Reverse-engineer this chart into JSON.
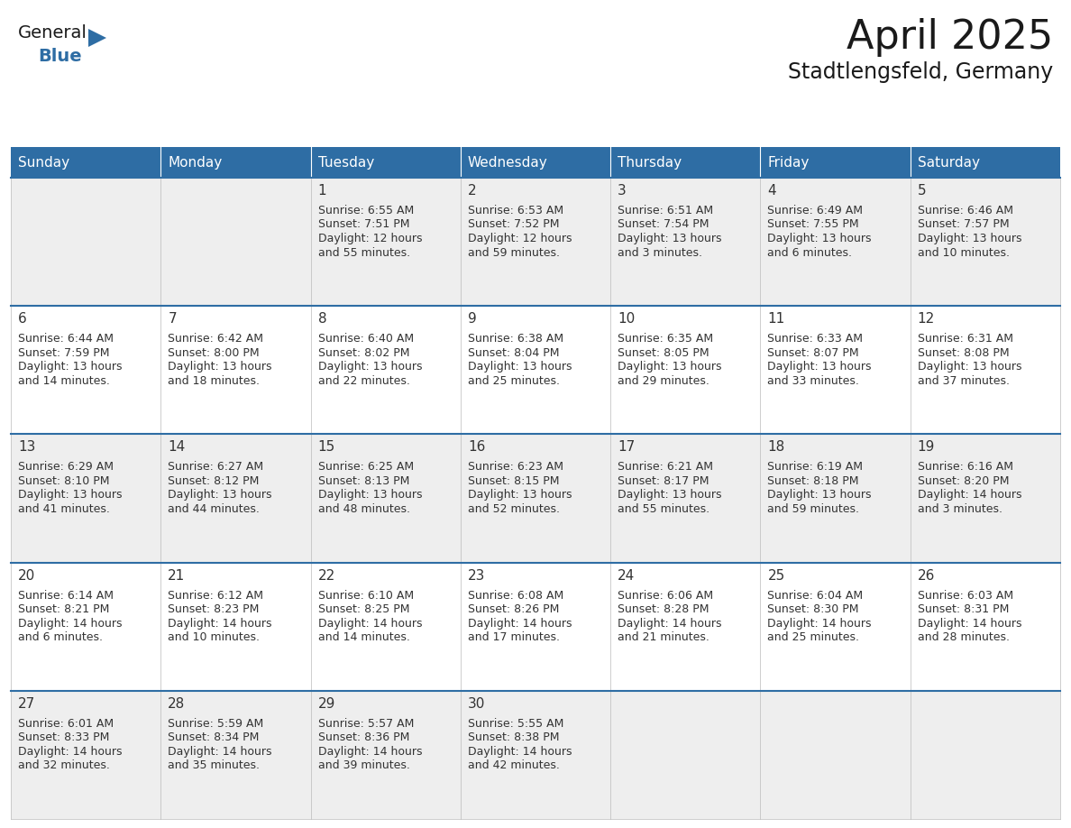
{
  "title": "April 2025",
  "subtitle": "Stadtlengsfeld, Germany",
  "header_bg_color": "#2E6DA4",
  "header_text_color": "#FFFFFF",
  "cell_bg_row0": "#EEEEEE",
  "cell_bg_row1": "#FFFFFF",
  "cell_border_color": "#BBBBBB",
  "row_divider_color": "#2E6DA4",
  "days_of_week": [
    "Sunday",
    "Monday",
    "Tuesday",
    "Wednesday",
    "Thursday",
    "Friday",
    "Saturday"
  ],
  "title_color": "#1A1A1A",
  "subtitle_color": "#1A1A1A",
  "text_color": "#333333",
  "logo_text_color": "#1A1A1A",
  "logo_blue_color": "#2E6DA4",
  "day_number_fontsize": 11,
  "cell_text_fontsize": 9,
  "header_fontsize": 11,
  "title_fontsize": 32,
  "subtitle_fontsize": 17,
  "calendar_data": [
    [
      {
        "day": "",
        "sunrise": "",
        "sunset": "",
        "daylight": ""
      },
      {
        "day": "",
        "sunrise": "",
        "sunset": "",
        "daylight": ""
      },
      {
        "day": "1",
        "sunrise": "6:55 AM",
        "sunset": "7:51 PM",
        "daylight_h": "12 hours",
        "daylight_m": "and 55 minutes."
      },
      {
        "day": "2",
        "sunrise": "6:53 AM",
        "sunset": "7:52 PM",
        "daylight_h": "12 hours",
        "daylight_m": "and 59 minutes."
      },
      {
        "day": "3",
        "sunrise": "6:51 AM",
        "sunset": "7:54 PM",
        "daylight_h": "13 hours",
        "daylight_m": "and 3 minutes."
      },
      {
        "day": "4",
        "sunrise": "6:49 AM",
        "sunset": "7:55 PM",
        "daylight_h": "13 hours",
        "daylight_m": "and 6 minutes."
      },
      {
        "day": "5",
        "sunrise": "6:46 AM",
        "sunset": "7:57 PM",
        "daylight_h": "13 hours",
        "daylight_m": "and 10 minutes."
      }
    ],
    [
      {
        "day": "6",
        "sunrise": "6:44 AM",
        "sunset": "7:59 PM",
        "daylight_h": "13 hours",
        "daylight_m": "and 14 minutes."
      },
      {
        "day": "7",
        "sunrise": "6:42 AM",
        "sunset": "8:00 PM",
        "daylight_h": "13 hours",
        "daylight_m": "and 18 minutes."
      },
      {
        "day": "8",
        "sunrise": "6:40 AM",
        "sunset": "8:02 PM",
        "daylight_h": "13 hours",
        "daylight_m": "and 22 minutes."
      },
      {
        "day": "9",
        "sunrise": "6:38 AM",
        "sunset": "8:04 PM",
        "daylight_h": "13 hours",
        "daylight_m": "and 25 minutes."
      },
      {
        "day": "10",
        "sunrise": "6:35 AM",
        "sunset": "8:05 PM",
        "daylight_h": "13 hours",
        "daylight_m": "and 29 minutes."
      },
      {
        "day": "11",
        "sunrise": "6:33 AM",
        "sunset": "8:07 PM",
        "daylight_h": "13 hours",
        "daylight_m": "and 33 minutes."
      },
      {
        "day": "12",
        "sunrise": "6:31 AM",
        "sunset": "8:08 PM",
        "daylight_h": "13 hours",
        "daylight_m": "and 37 minutes."
      }
    ],
    [
      {
        "day": "13",
        "sunrise": "6:29 AM",
        "sunset": "8:10 PM",
        "daylight_h": "13 hours",
        "daylight_m": "and 41 minutes."
      },
      {
        "day": "14",
        "sunrise": "6:27 AM",
        "sunset": "8:12 PM",
        "daylight_h": "13 hours",
        "daylight_m": "and 44 minutes."
      },
      {
        "day": "15",
        "sunrise": "6:25 AM",
        "sunset": "8:13 PM",
        "daylight_h": "13 hours",
        "daylight_m": "and 48 minutes."
      },
      {
        "day": "16",
        "sunrise": "6:23 AM",
        "sunset": "8:15 PM",
        "daylight_h": "13 hours",
        "daylight_m": "and 52 minutes."
      },
      {
        "day": "17",
        "sunrise": "6:21 AM",
        "sunset": "8:17 PM",
        "daylight_h": "13 hours",
        "daylight_m": "and 55 minutes."
      },
      {
        "day": "18",
        "sunrise": "6:19 AM",
        "sunset": "8:18 PM",
        "daylight_h": "13 hours",
        "daylight_m": "and 59 minutes."
      },
      {
        "day": "19",
        "sunrise": "6:16 AM",
        "sunset": "8:20 PM",
        "daylight_h": "14 hours",
        "daylight_m": "and 3 minutes."
      }
    ],
    [
      {
        "day": "20",
        "sunrise": "6:14 AM",
        "sunset": "8:21 PM",
        "daylight_h": "14 hours",
        "daylight_m": "and 6 minutes."
      },
      {
        "day": "21",
        "sunrise": "6:12 AM",
        "sunset": "8:23 PM",
        "daylight_h": "14 hours",
        "daylight_m": "and 10 minutes."
      },
      {
        "day": "22",
        "sunrise": "6:10 AM",
        "sunset": "8:25 PM",
        "daylight_h": "14 hours",
        "daylight_m": "and 14 minutes."
      },
      {
        "day": "23",
        "sunrise": "6:08 AM",
        "sunset": "8:26 PM",
        "daylight_h": "14 hours",
        "daylight_m": "and 17 minutes."
      },
      {
        "day": "24",
        "sunrise": "6:06 AM",
        "sunset": "8:28 PM",
        "daylight_h": "14 hours",
        "daylight_m": "and 21 minutes."
      },
      {
        "day": "25",
        "sunrise": "6:04 AM",
        "sunset": "8:30 PM",
        "daylight_h": "14 hours",
        "daylight_m": "and 25 minutes."
      },
      {
        "day": "26",
        "sunrise": "6:03 AM",
        "sunset": "8:31 PM",
        "daylight_h": "14 hours",
        "daylight_m": "and 28 minutes."
      }
    ],
    [
      {
        "day": "27",
        "sunrise": "6:01 AM",
        "sunset": "8:33 PM",
        "daylight_h": "14 hours",
        "daylight_m": "and 32 minutes."
      },
      {
        "day": "28",
        "sunrise": "5:59 AM",
        "sunset": "8:34 PM",
        "daylight_h": "14 hours",
        "daylight_m": "and 35 minutes."
      },
      {
        "day": "29",
        "sunrise": "5:57 AM",
        "sunset": "8:36 PM",
        "daylight_h": "14 hours",
        "daylight_m": "and 39 minutes."
      },
      {
        "day": "30",
        "sunrise": "5:55 AM",
        "sunset": "8:38 PM",
        "daylight_h": "14 hours",
        "daylight_m": "and 42 minutes."
      },
      {
        "day": "",
        "sunrise": "",
        "sunset": "",
        "daylight_h": "",
        "daylight_m": ""
      },
      {
        "day": "",
        "sunrise": "",
        "sunset": "",
        "daylight_h": "",
        "daylight_m": ""
      },
      {
        "day": "",
        "sunrise": "",
        "sunset": "",
        "daylight_h": "",
        "daylight_m": ""
      }
    ]
  ]
}
